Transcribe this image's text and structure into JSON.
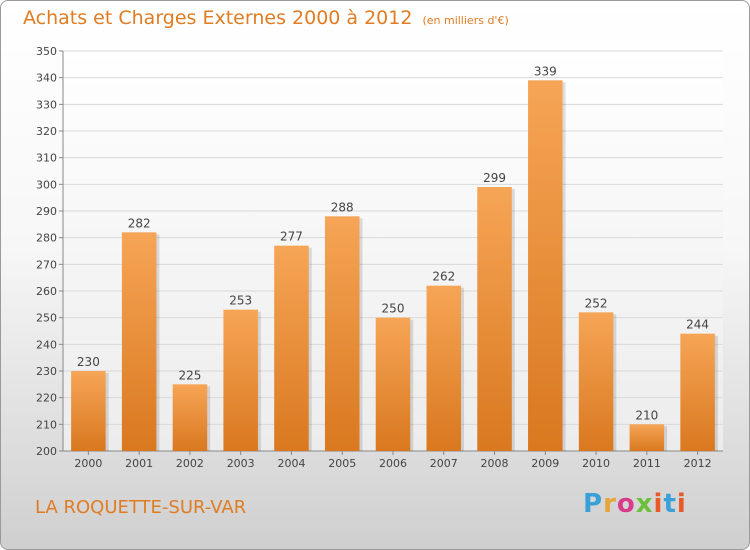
{
  "header": {
    "title": "Achats et Charges Externes 2000 à 2012",
    "unit": "(en milliers d'€)"
  },
  "footer": {
    "place": "LA ROQUETTE-SUR-VAR",
    "logo": [
      "P",
      "r",
      "o",
      "x",
      "i",
      "t",
      "i"
    ]
  },
  "colors": {
    "accent": "#e07c22",
    "bar_top": "#f6a556",
    "bar_bottom": "#d9781f",
    "gridline": "#d9d9d9"
  },
  "chart_data": {
    "type": "bar",
    "title": "Achats et Charges Externes 2000 à 2012",
    "categories": [
      "2000",
      "2001",
      "2002",
      "2003",
      "2004",
      "2005",
      "2006",
      "2007",
      "2008",
      "2009",
      "2010",
      "2011",
      "2012"
    ],
    "values": [
      230,
      282,
      225,
      253,
      277,
      288,
      250,
      262,
      299,
      339,
      252,
      210,
      244
    ],
    "ylim": [
      200,
      350
    ],
    "yticks": [
      200,
      210,
      220,
      230,
      240,
      250,
      260,
      270,
      280,
      290,
      300,
      310,
      320,
      330,
      340,
      350
    ],
    "grid": true,
    "xlabel": "",
    "ylabel": ""
  }
}
